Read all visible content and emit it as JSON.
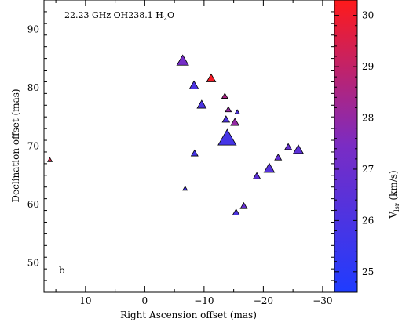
{
  "chart_data": {
    "type": "scatter",
    "title": "22.23 GHz OH238.1 H",
    "title_sub": "2",
    "title_end": "O",
    "panel_label": "b",
    "xlabel": "Right Ascension offset (mas)",
    "ylabel": "Declination offset (mas)",
    "xlim": [
      17,
      -32
    ],
    "ylim": [
      45,
      95
    ],
    "xticks": [
      10,
      0,
      -10,
      -20,
      -30
    ],
    "yticks": [
      50,
      60,
      70,
      80,
      90
    ],
    "grid": false,
    "marker": "triangle",
    "colorbar": {
      "label_main": "V",
      "label_sub": "lsr",
      "label_units": " (km/s)",
      "range": [
        24.6,
        30.3
      ],
      "ticks": [
        25,
        26,
        27,
        28,
        29,
        30
      ],
      "low_color": "#1f3cff",
      "high_color": "#ff1a1a"
    },
    "points": [
      {
        "x": 16.0,
        "y": 67.6,
        "size": 1.0,
        "v": 29.6
      },
      {
        "x": -6.4,
        "y": 84.5,
        "size": 2.6,
        "v": 27.3
      },
      {
        "x": -11.2,
        "y": 81.5,
        "size": 2.0,
        "v": 30.1
      },
      {
        "x": -8.3,
        "y": 80.3,
        "size": 2.0,
        "v": 26.0
      },
      {
        "x": -13.5,
        "y": 78.5,
        "size": 1.3,
        "v": 28.5
      },
      {
        "x": -9.6,
        "y": 77.0,
        "size": 2.0,
        "v": 26.0
      },
      {
        "x": -14.1,
        "y": 76.2,
        "size": 1.3,
        "v": 28.0
      },
      {
        "x": -15.6,
        "y": 75.8,
        "size": 1.0,
        "v": 26.0
      },
      {
        "x": -13.7,
        "y": 74.5,
        "size": 1.6,
        "v": 26.0
      },
      {
        "x": -15.2,
        "y": 74.0,
        "size": 1.8,
        "v": 28.0
      },
      {
        "x": -13.9,
        "y": 71.2,
        "size": 4.0,
        "v": 25.8
      },
      {
        "x": -8.4,
        "y": 68.7,
        "size": 1.5,
        "v": 25.8
      },
      {
        "x": -6.8,
        "y": 62.7,
        "size": 1.0,
        "v": 25.8
      },
      {
        "x": -24.2,
        "y": 69.8,
        "size": 1.5,
        "v": 26.8
      },
      {
        "x": -25.9,
        "y": 69.3,
        "size": 2.2,
        "v": 26.5
      },
      {
        "x": -22.5,
        "y": 68.0,
        "size": 1.5,
        "v": 26.7
      },
      {
        "x": -21.0,
        "y": 66.1,
        "size": 2.3,
        "v": 26.3
      },
      {
        "x": -18.9,
        "y": 64.8,
        "size": 1.6,
        "v": 26.5
      },
      {
        "x": -16.7,
        "y": 59.7,
        "size": 1.5,
        "v": 26.8
      },
      {
        "x": -15.4,
        "y": 58.6,
        "size": 1.5,
        "v": 26.0
      }
    ]
  }
}
